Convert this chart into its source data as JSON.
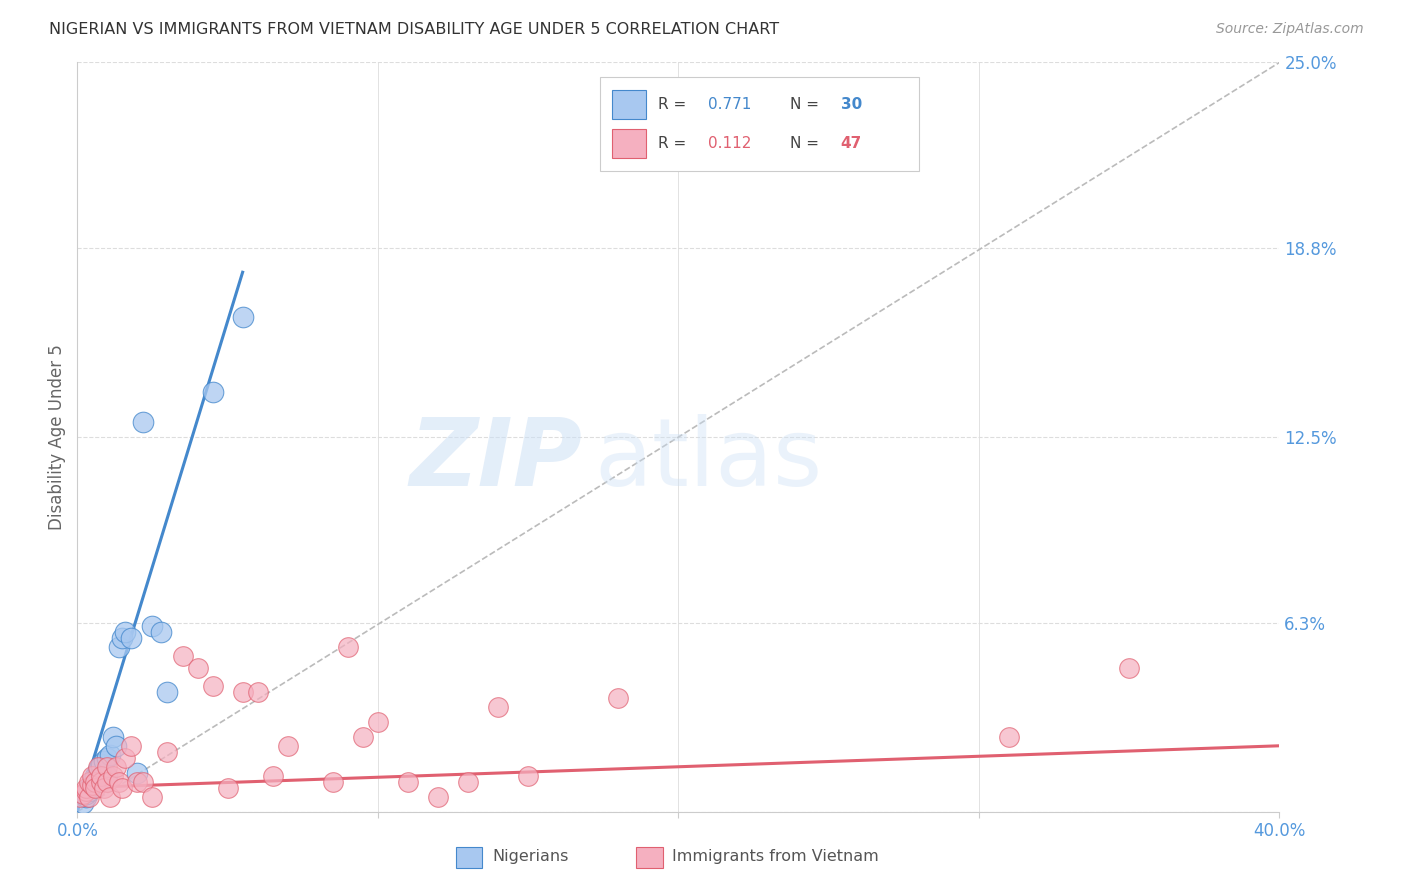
{
  "title": "NIGERIAN VS IMMIGRANTS FROM VIETNAM DISABILITY AGE UNDER 5 CORRELATION CHART",
  "source": "Source: ZipAtlas.com",
  "ylabel": "Disability Age Under 5",
  "r_nigerian": 0.771,
  "n_nigerian": 30,
  "r_vietnam": 0.112,
  "n_vietnam": 47,
  "xmin": 0.0,
  "xmax": 0.4,
  "ymin": 0.0,
  "ymax": 0.25,
  "yticks": [
    0.0,
    0.063,
    0.125,
    0.188,
    0.25
  ],
  "ytick_labels": [
    "",
    "6.3%",
    "12.5%",
    "18.8%",
    "25.0%"
  ],
  "xtick_positions": [
    0.0,
    0.4
  ],
  "xtick_labels": [
    "0.0%",
    "40.0%"
  ],
  "color_nigerian": "#a8c8f0",
  "color_vietnam": "#f5b0c0",
  "line_color_nigerian": "#4488cc",
  "line_color_vietnam": "#e06070",
  "background_color": "#ffffff",
  "grid_color": "#dddddd",
  "title_color": "#333333",
  "axis_tick_color": "#5599dd",
  "watermark_zip": "ZIP",
  "watermark_atlas": "atlas",
  "nigerian_x": [
    0.002,
    0.003,
    0.003,
    0.004,
    0.004,
    0.005,
    0.005,
    0.006,
    0.006,
    0.007,
    0.007,
    0.008,
    0.008,
    0.009,
    0.01,
    0.01,
    0.011,
    0.012,
    0.013,
    0.014,
    0.015,
    0.016,
    0.018,
    0.02,
    0.022,
    0.025,
    0.028,
    0.03,
    0.045,
    0.055
  ],
  "nigerian_y": [
    0.003,
    0.005,
    0.006,
    0.007,
    0.008,
    0.009,
    0.01,
    0.011,
    0.012,
    0.013,
    0.014,
    0.015,
    0.016,
    0.017,
    0.012,
    0.018,
    0.019,
    0.025,
    0.022,
    0.055,
    0.058,
    0.06,
    0.058,
    0.013,
    0.13,
    0.062,
    0.06,
    0.04,
    0.14,
    0.165
  ],
  "vietnam_x": [
    0.001,
    0.002,
    0.003,
    0.003,
    0.004,
    0.004,
    0.005,
    0.005,
    0.006,
    0.006,
    0.007,
    0.008,
    0.008,
    0.009,
    0.01,
    0.01,
    0.011,
    0.012,
    0.013,
    0.014,
    0.015,
    0.016,
    0.018,
    0.02,
    0.022,
    0.025,
    0.03,
    0.035,
    0.04,
    0.045,
    0.05,
    0.055,
    0.06,
    0.065,
    0.07,
    0.085,
    0.09,
    0.095,
    0.1,
    0.11,
    0.12,
    0.13,
    0.14,
    0.15,
    0.18,
    0.31,
    0.35
  ],
  "vietnam_y": [
    0.005,
    0.006,
    0.007,
    0.008,
    0.005,
    0.01,
    0.009,
    0.012,
    0.01,
    0.008,
    0.015,
    0.01,
    0.012,
    0.008,
    0.015,
    0.01,
    0.005,
    0.012,
    0.015,
    0.01,
    0.008,
    0.018,
    0.022,
    0.01,
    0.01,
    0.005,
    0.02,
    0.052,
    0.048,
    0.042,
    0.008,
    0.04,
    0.04,
    0.012,
    0.022,
    0.01,
    0.055,
    0.025,
    0.03,
    0.01,
    0.005,
    0.01,
    0.035,
    0.012,
    0.038,
    0.025,
    0.048
  ],
  "nig_line_x0": 0.0,
  "nig_line_y0": 0.0,
  "nig_line_x1": 0.055,
  "nig_line_y1": 0.18,
  "viet_line_x0": 0.0,
  "viet_line_y0": 0.008,
  "viet_line_x1": 0.4,
  "viet_line_y1": 0.022,
  "ref_line_x0": 0.0,
  "ref_line_y0": 0.0,
  "ref_line_x1": 0.4,
  "ref_line_y1": 0.25
}
